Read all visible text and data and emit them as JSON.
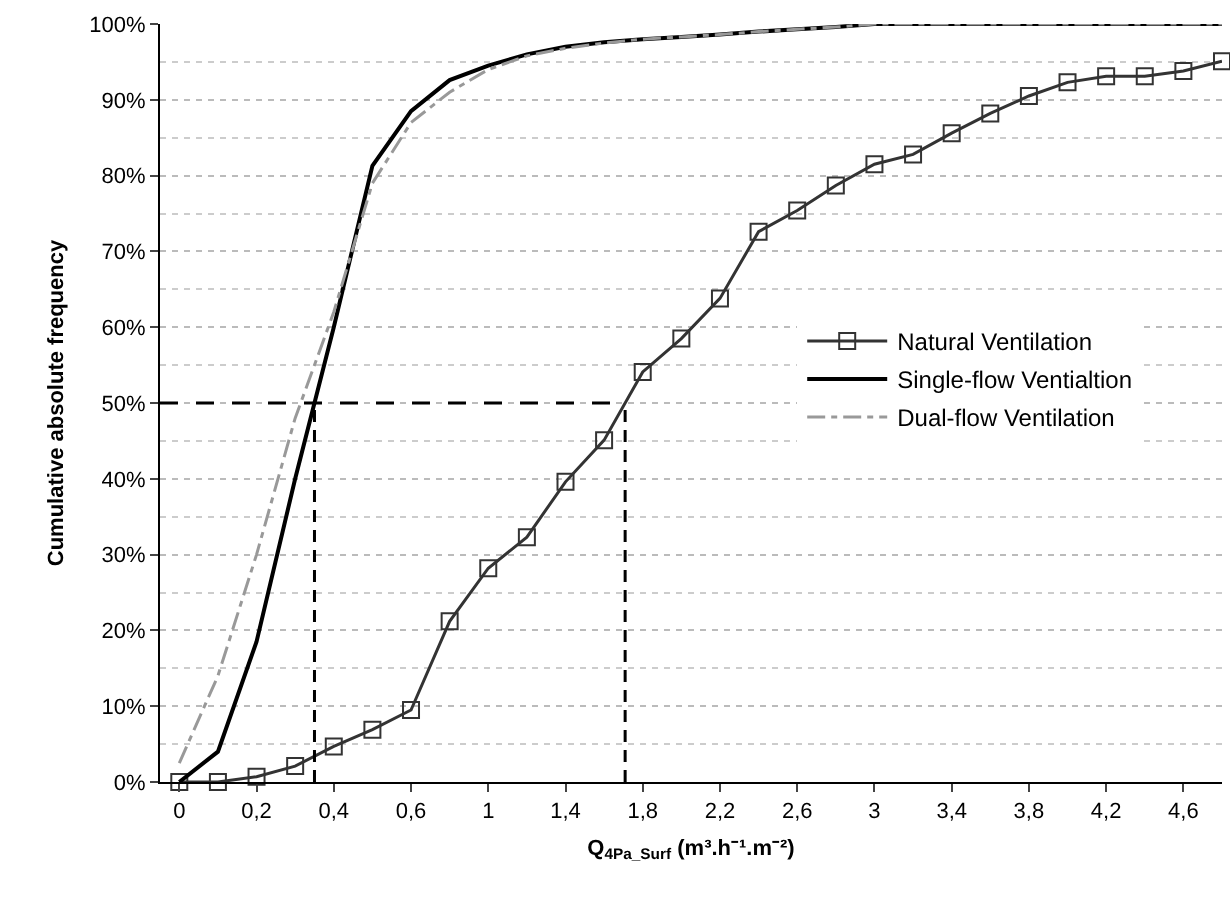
{
  "chart_data": {
    "type": "line",
    "xlabel": "Q$_{4Pa_Surf}$ (m³.h⁻¹.m⁻²)",
    "ylabel": "Cumulative absolute frequency",
    "categories": [
      "0",
      null,
      "0,2",
      null,
      "0,4",
      null,
      "0,6",
      null,
      "1",
      null,
      "1,4",
      null,
      "1,8",
      null,
      "2,2",
      null,
      "2,6",
      null,
      "3",
      null,
      "3,4",
      null,
      "3,8",
      null,
      "4,2",
      null,
      "4,6",
      null
    ],
    "series": [
      {
        "name": "Natural Ventilation",
        "color": "#333333",
        "marker": "square",
        "line_style": "solid",
        "values": [
          0,
          0,
          0.7,
          2.1,
          4.7,
          6.9,
          9.5,
          21.2,
          28.2,
          32.3,
          39.6,
          45.1,
          54.1,
          58.5,
          63.8,
          72.6,
          75.4,
          78.7,
          81.5,
          82.8,
          85.6,
          88.2,
          90.5,
          92.3,
          93.1,
          93.1,
          93.8,
          95.1
        ]
      },
      {
        "name": "Single-flow Ventialtion",
        "color": "#000000",
        "marker": "none",
        "line_style": "solid",
        "values": [
          0,
          4,
          18.5,
          40,
          60,
          81.3,
          88.5,
          92.6,
          94.5,
          96,
          97,
          97.6,
          98,
          98.3,
          98.6,
          99,
          99.3,
          99.6,
          100,
          100,
          100,
          100,
          100,
          100,
          100,
          100,
          100,
          100
        ]
      },
      {
        "name": "Dual-flow Ventilation",
        "color": "#999999",
        "marker": "none",
        "line_style": "dashed",
        "values": [
          2.5,
          14,
          30,
          48,
          62,
          79,
          87,
          91,
          94,
          95.8,
          96.8,
          97.5,
          98,
          98.3,
          98.6,
          99,
          99.3,
          99.6,
          100,
          100,
          100,
          100,
          100,
          100,
          100,
          100,
          100,
          100
        ]
      }
    ],
    "ylim": [
      0,
      100
    ],
    "yticks": [
      {
        "value": 0,
        "label": "0%"
      },
      {
        "value": 10,
        "label": "10%"
      },
      {
        "value": 20,
        "label": "20%"
      },
      {
        "value": 30,
        "label": "30%"
      },
      {
        "value": 40,
        "label": "40%"
      },
      {
        "value": 50,
        "label": "50%"
      },
      {
        "value": 60,
        "label": "60%"
      },
      {
        "value": 70,
        "label": "70%"
      },
      {
        "value": 80,
        "label": "80%"
      },
      {
        "value": 90,
        "label": "90%"
      },
      {
        "value": 100,
        "label": "100%"
      }
    ],
    "ref_lines": [
      {
        "axis": "y",
        "value": 50,
        "color": "#000000",
        "line_style": "dashed"
      }
    ],
    "grid": "y",
    "legend": "right"
  }
}
